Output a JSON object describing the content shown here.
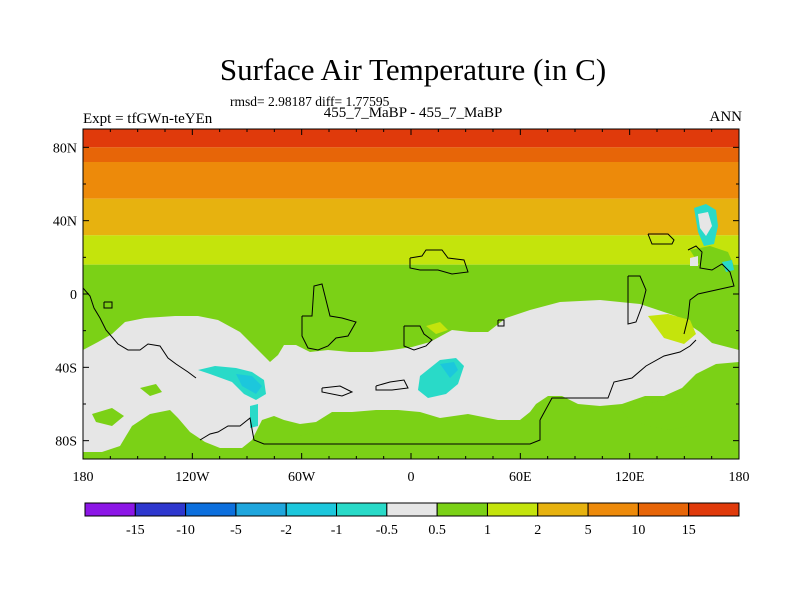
{
  "plot": {
    "title": "Surface Air Temperature (in C)",
    "stats": "rmsd= 2.98187 diff= 1.77595",
    "runs": "455_7_MaBP - 455_7_MaBP",
    "experiment": "Expt = tfGWn-teYEn",
    "season": "ANN"
  },
  "chart_data": {
    "type": "heatmap",
    "title": "Surface Air Temperature (in C)",
    "x_tick_labels": [
      "180",
      "120W",
      "60W",
      "0",
      "60E",
      "120E",
      "180"
    ],
    "y_tick_labels": [
      "80N",
      "40N",
      "0",
      "40S",
      "80S"
    ],
    "x_ticks": [
      -180,
      -120,
      -60,
      0,
      60,
      120,
      180
    ],
    "y_ticks": [
      80,
      40,
      0,
      -40,
      -80
    ],
    "lon_range": [
      -180,
      180
    ],
    "lat_range": [
      -90,
      90
    ],
    "colorbar": {
      "labels": [
        "-15",
        "-10",
        "-5",
        "-2",
        "-1",
        "-0.5",
        "0.5",
        "1",
        "2",
        "5",
        "10",
        "15"
      ],
      "levels": [
        -15,
        -10,
        -5,
        -2,
        -1,
        -0.5,
        0.5,
        1,
        2,
        5,
        10,
        15
      ],
      "colors": [
        "#8c16e6",
        "#2e37ce",
        "#0c6fdd",
        "#1fa6dd",
        "#1cc7dc",
        "#29dac8",
        "#e6e6e6",
        "#7bd116",
        "#c4e40c",
        "#e7b20f",
        "#ed8a0a",
        "#e76508",
        "#e03a0b"
      ]
    },
    "zonal_bands": [
      {
        "lat_range": [
          80,
          90
        ],
        "value": "15+",
        "color": "#e03a0b"
      },
      {
        "lat_range": [
          72,
          80
        ],
        "value": "10 to 15",
        "color": "#e76508"
      },
      {
        "lat_range": [
          52,
          72
        ],
        "value": "5 to 10",
        "color": "#ed8a0a"
      },
      {
        "lat_range": [
          32,
          52
        ],
        "value": "2 to 5",
        "color": "#e7b20f"
      },
      {
        "lat_range": [
          16,
          32
        ],
        "value": "1 to 2",
        "color": "#c4e40c"
      },
      {
        "lat_range": [
          -90,
          16
        ],
        "value": "0.5 to 1",
        "color": "#7bd116"
      }
    ],
    "regions": [
      {
        "name": "southern-near-zero",
        "value": "-0.5 to 0.5",
        "color": "#e6e6e6"
      },
      {
        "name": "cooling-south-pacific",
        "value": "-1 to -0.5",
        "color": "#29dac8"
      },
      {
        "name": "cooling-south-atlantic",
        "value": "-1 to -0.5",
        "color": "#29dac8"
      },
      {
        "name": "cooling-east-asia",
        "value": "-1 to -0.5",
        "color": "#29dac8"
      }
    ],
    "grid": false
  }
}
